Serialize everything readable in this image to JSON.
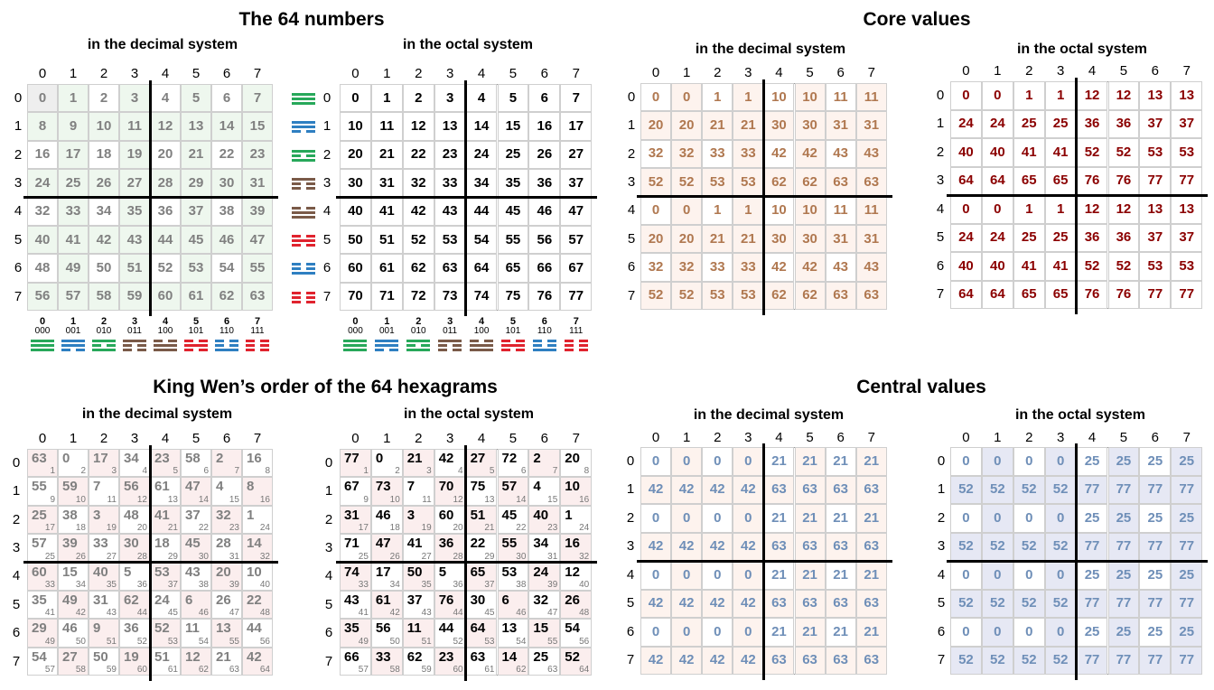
{
  "titles": {
    "t1": "The 64 numbers",
    "t2": "Core values",
    "t3": "King Wen’s order of the 64 hexagrams",
    "t4": "Central values"
  },
  "subtitles": {
    "dec": "in the decimal system",
    "oct": "in the octal system"
  },
  "headers": [
    "0",
    "1",
    "2",
    "3",
    "4",
    "5",
    "6",
    "7"
  ],
  "binary_labels": [
    "000",
    "001",
    "010",
    "011",
    "100",
    "101",
    "110",
    "111"
  ],
  "colors": {
    "gray_text": "#808080",
    "black_text": "#000000",
    "brown_text": "#b07850",
    "darkred_text": "#8b0000",
    "blue_text": "#6f8fb8",
    "green_bg": "#eef7ee",
    "pink_bg": "#fbeeee",
    "blue_bg": "#e6e8f4",
    "peach_bg": "#fdf3ee",
    "trigram_colors": [
      "#27a85a",
      "#2e7fc1",
      "#27a85a",
      "#7a5a48",
      "#7a5a48",
      "#e0232e",
      "#2e7fc1",
      "#e0232e"
    ]
  },
  "trigram_icons": [
    "earth-trigram-icon",
    "mountain-trigram-icon",
    "water-trigram-icon",
    "wind-trigram-icon",
    "thunder-trigram-icon",
    "fire-trigram-icon",
    "lake-trigram-icon",
    "heaven-trigram-icon"
  ],
  "tables": {
    "numbers_dec": [
      [
        "0",
        "1",
        "2",
        "3",
        "4",
        "5",
        "6",
        "7"
      ],
      [
        "8",
        "9",
        "10",
        "11",
        "12",
        "13",
        "14",
        "15"
      ],
      [
        "16",
        "17",
        "18",
        "19",
        "20",
        "21",
        "22",
        "23"
      ],
      [
        "24",
        "25",
        "26",
        "27",
        "28",
        "29",
        "30",
        "31"
      ],
      [
        "32",
        "33",
        "34",
        "35",
        "36",
        "37",
        "38",
        "39"
      ],
      [
        "40",
        "41",
        "42",
        "43",
        "44",
        "45",
        "46",
        "47"
      ],
      [
        "48",
        "49",
        "50",
        "51",
        "52",
        "53",
        "54",
        "55"
      ],
      [
        "56",
        "57",
        "58",
        "59",
        "60",
        "61",
        "62",
        "63"
      ]
    ],
    "numbers_oct": [
      [
        "0",
        "1",
        "2",
        "3",
        "4",
        "5",
        "6",
        "7"
      ],
      [
        "10",
        "11",
        "12",
        "13",
        "14",
        "15",
        "16",
        "17"
      ],
      [
        "20",
        "21",
        "22",
        "23",
        "24",
        "25",
        "26",
        "27"
      ],
      [
        "30",
        "31",
        "32",
        "33",
        "34",
        "35",
        "36",
        "37"
      ],
      [
        "40",
        "41",
        "42",
        "43",
        "44",
        "45",
        "46",
        "47"
      ],
      [
        "50",
        "51",
        "52",
        "53",
        "54",
        "55",
        "56",
        "57"
      ],
      [
        "60",
        "61",
        "62",
        "63",
        "64",
        "65",
        "66",
        "67"
      ],
      [
        "70",
        "71",
        "72",
        "73",
        "74",
        "75",
        "76",
        "77"
      ]
    ],
    "core_dec": [
      [
        "0",
        "0",
        "1",
        "1",
        "10",
        "10",
        "11",
        "11"
      ],
      [
        "20",
        "20",
        "21",
        "21",
        "30",
        "30",
        "31",
        "31"
      ],
      [
        "32",
        "32",
        "33",
        "33",
        "42",
        "42",
        "43",
        "43"
      ],
      [
        "52",
        "52",
        "53",
        "53",
        "62",
        "62",
        "63",
        "63"
      ],
      [
        "0",
        "0",
        "1",
        "1",
        "10",
        "10",
        "11",
        "11"
      ],
      [
        "20",
        "20",
        "21",
        "21",
        "30",
        "30",
        "31",
        "31"
      ],
      [
        "32",
        "32",
        "33",
        "33",
        "42",
        "42",
        "43",
        "43"
      ],
      [
        "52",
        "52",
        "53",
        "53",
        "62",
        "62",
        "63",
        "63"
      ]
    ],
    "core_oct": [
      [
        "0",
        "0",
        "1",
        "1",
        "12",
        "12",
        "13",
        "13"
      ],
      [
        "24",
        "24",
        "25",
        "25",
        "36",
        "36",
        "37",
        "37"
      ],
      [
        "40",
        "40",
        "41",
        "41",
        "52",
        "52",
        "53",
        "53"
      ],
      [
        "64",
        "64",
        "65",
        "65",
        "76",
        "76",
        "77",
        "77"
      ],
      [
        "0",
        "0",
        "1",
        "1",
        "12",
        "12",
        "13",
        "13"
      ],
      [
        "24",
        "24",
        "25",
        "25",
        "36",
        "36",
        "37",
        "37"
      ],
      [
        "40",
        "40",
        "41",
        "41",
        "52",
        "52",
        "53",
        "53"
      ],
      [
        "64",
        "64",
        "65",
        "65",
        "76",
        "76",
        "77",
        "77"
      ]
    ],
    "kw_dec": [
      [
        "63",
        "0",
        "17",
        "34",
        "23",
        "58",
        "2",
        "16"
      ],
      [
        "55",
        "59",
        "7",
        "56",
        "61",
        "47",
        "4",
        "8"
      ],
      [
        "25",
        "38",
        "3",
        "48",
        "41",
        "37",
        "32",
        "1"
      ],
      [
        "57",
        "39",
        "33",
        "30",
        "18",
        "45",
        "28",
        "14"
      ],
      [
        "60",
        "15",
        "40",
        "5",
        "53",
        "43",
        "20",
        "10"
      ],
      [
        "35",
        "49",
        "31",
        "62",
        "24",
        "6",
        "26",
        "22"
      ],
      [
        "29",
        "46",
        "9",
        "36",
        "52",
        "11",
        "13",
        "44"
      ],
      [
        "54",
        "27",
        "50",
        "19",
        "51",
        "12",
        "21",
        "42"
      ]
    ],
    "kw_oct": [
      [
        "77",
        "0",
        "21",
        "42",
        "27",
        "72",
        "2",
        "20"
      ],
      [
        "67",
        "73",
        "7",
        "70",
        "75",
        "57",
        "4",
        "10"
      ],
      [
        "31",
        "46",
        "3",
        "60",
        "51",
        "45",
        "40",
        "1"
      ],
      [
        "71",
        "47",
        "41",
        "36",
        "22",
        "55",
        "34",
        "16"
      ],
      [
        "74",
        "17",
        "50",
        "5",
        "65",
        "53",
        "24",
        "12"
      ],
      [
        "43",
        "61",
        "37",
        "76",
        "30",
        "6",
        "32",
        "26"
      ],
      [
        "35",
        "56",
        "11",
        "44",
        "64",
        "13",
        "15",
        "54"
      ],
      [
        "66",
        "33",
        "62",
        "23",
        "63",
        "14",
        "25",
        "52"
      ]
    ],
    "kw_sub": [
      [
        "1",
        "2",
        "3",
        "4",
        "5",
        "6",
        "7",
        "8"
      ],
      [
        "9",
        "10",
        "11",
        "12",
        "13",
        "14",
        "15",
        "16"
      ],
      [
        "17",
        "18",
        "19",
        "20",
        "21",
        "22",
        "23",
        "24"
      ],
      [
        "25",
        "26",
        "27",
        "28",
        "29",
        "30",
        "31",
        "32"
      ],
      [
        "33",
        "34",
        "35",
        "36",
        "37",
        "38",
        "39",
        "40"
      ],
      [
        "41",
        "42",
        "43",
        "44",
        "45",
        "46",
        "47",
        "48"
      ],
      [
        "49",
        "50",
        "51",
        "52",
        "53",
        "54",
        "55",
        "56"
      ],
      [
        "57",
        "58",
        "59",
        "60",
        "61",
        "62",
        "63",
        "64"
      ]
    ],
    "central_dec": [
      [
        "0",
        "0",
        "0",
        "0",
        "21",
        "21",
        "21",
        "21"
      ],
      [
        "42",
        "42",
        "42",
        "42",
        "63",
        "63",
        "63",
        "63"
      ],
      [
        "0",
        "0",
        "0",
        "0",
        "21",
        "21",
        "21",
        "21"
      ],
      [
        "42",
        "42",
        "42",
        "42",
        "63",
        "63",
        "63",
        "63"
      ],
      [
        "0",
        "0",
        "0",
        "0",
        "21",
        "21",
        "21",
        "21"
      ],
      [
        "42",
        "42",
        "42",
        "42",
        "63",
        "63",
        "63",
        "63"
      ],
      [
        "0",
        "0",
        "0",
        "0",
        "21",
        "21",
        "21",
        "21"
      ],
      [
        "42",
        "42",
        "42",
        "42",
        "63",
        "63",
        "63",
        "63"
      ]
    ],
    "central_oct": [
      [
        "0",
        "0",
        "0",
        "0",
        "25",
        "25",
        "25",
        "25"
      ],
      [
        "52",
        "52",
        "52",
        "52",
        "77",
        "77",
        "77",
        "77"
      ],
      [
        "0",
        "0",
        "0",
        "0",
        "25",
        "25",
        "25",
        "25"
      ],
      [
        "52",
        "52",
        "52",
        "52",
        "77",
        "77",
        "77",
        "77"
      ],
      [
        "0",
        "0",
        "0",
        "0",
        "25",
        "25",
        "25",
        "25"
      ],
      [
        "52",
        "52",
        "52",
        "52",
        "77",
        "77",
        "77",
        "77"
      ],
      [
        "0",
        "0",
        "0",
        "0",
        "25",
        "25",
        "25",
        "25"
      ],
      [
        "52",
        "52",
        "52",
        "52",
        "77",
        "77",
        "77",
        "77"
      ]
    ]
  }
}
